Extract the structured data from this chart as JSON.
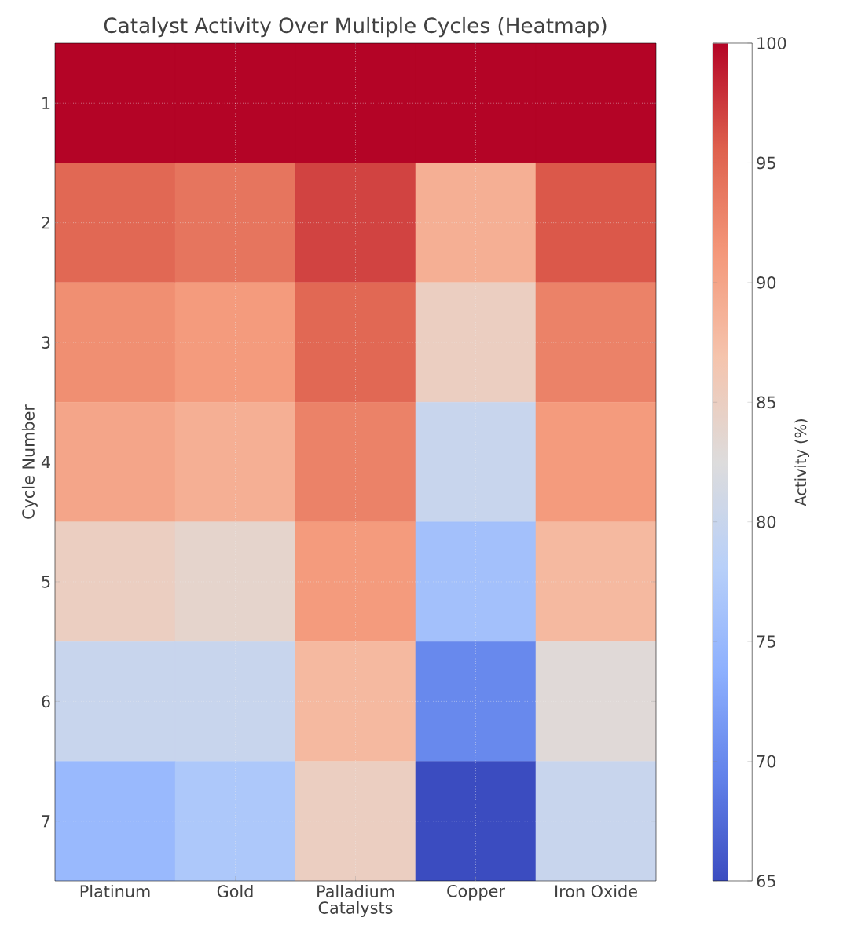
{
  "chart_data": {
    "type": "heatmap",
    "title": "Catalyst Activity Over Multiple Cycles (Heatmap)",
    "xlabel": "Catalysts",
    "ylabel": "Cycle Number",
    "clabel": "Activity (%)",
    "categories": [
      "Platinum",
      "Gold",
      "Palladium",
      "Copper",
      "Iron Oxide"
    ],
    "y_categories": [
      "1",
      "2",
      "3",
      "4",
      "5",
      "6",
      "7"
    ],
    "cells": [
      [
        100,
        100,
        100,
        100,
        100
      ],
      [
        95,
        94,
        97,
        89,
        96
      ],
      [
        92,
        91,
        95,
        85,
        93
      ],
      [
        90,
        89,
        93,
        80,
        91
      ],
      [
        85,
        84,
        91,
        76,
        88
      ],
      [
        80,
        80,
        88,
        70,
        83
      ],
      [
        75,
        77,
        85,
        65,
        80
      ]
    ],
    "clim": [
      65,
      100
    ],
    "cticks": [
      65,
      70,
      75,
      80,
      85,
      90,
      95,
      100
    ],
    "grid": true
  }
}
